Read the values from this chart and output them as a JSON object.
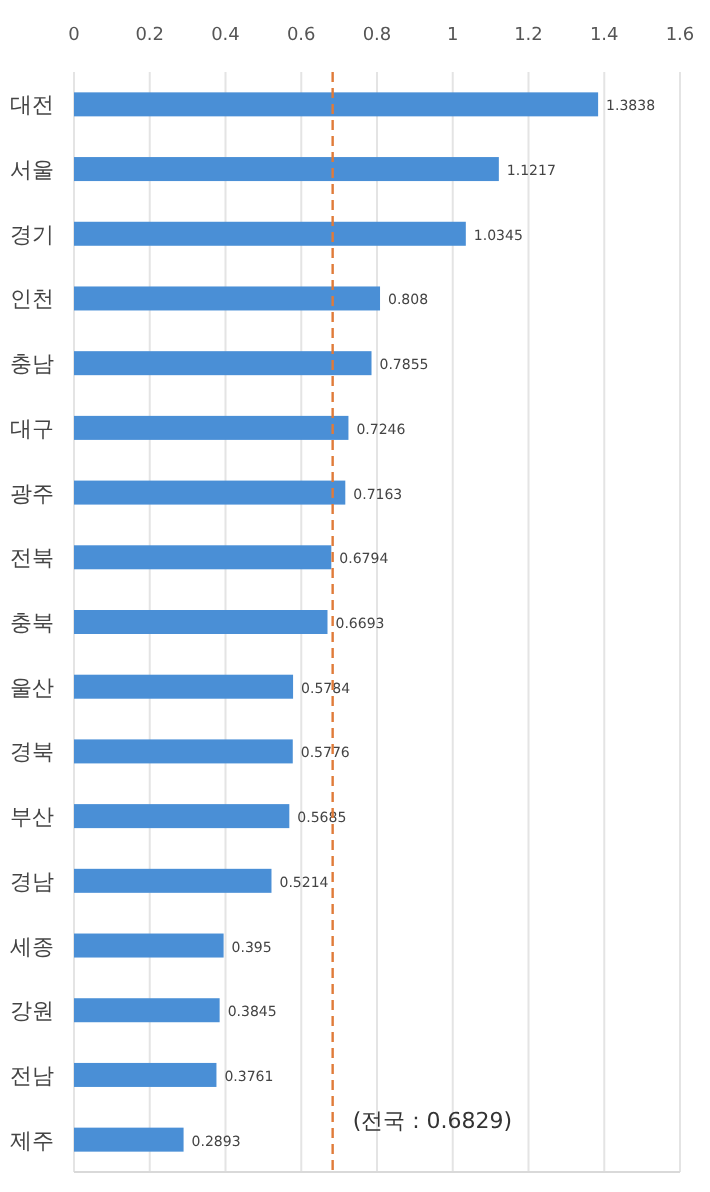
{
  "chart_data": {
    "type": "bar",
    "orientation": "horizontal",
    "categories": [
      "대전",
      "서울",
      "경기",
      "인천",
      "충남",
      "대구",
      "광주",
      "전북",
      "충북",
      "울산",
      "경북",
      "부산",
      "경남",
      "세종",
      "강원",
      "전남",
      "제주"
    ],
    "values": [
      1.3838,
      1.1217,
      1.0345,
      0.808,
      0.7855,
      0.7246,
      0.7163,
      0.6794,
      0.6693,
      0.5784,
      0.5776,
      0.5685,
      0.5214,
      0.395,
      0.3845,
      0.3761,
      0.2893
    ],
    "color": "#4a8fd6",
    "xlim": [
      0,
      1.6
    ],
    "xticks": [
      0,
      0.2,
      0.4,
      0.6,
      0.8,
      1,
      1.2,
      1.4,
      1.6
    ],
    "grid": "x",
    "data_labels": true,
    "ref_lines": [
      {
        "axis": "x",
        "value": 0.6829,
        "label": "(전국 : 0.6829)",
        "color": "#e07b39",
        "line_style": "dashed"
      }
    ]
  }
}
